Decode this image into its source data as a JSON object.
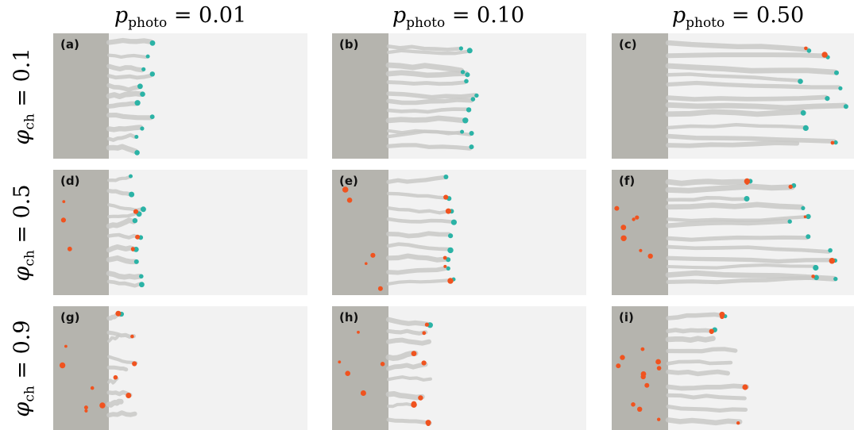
{
  "columns": [
    {
      "label": "p",
      "sub": "photo",
      "value": "= 0.01"
    },
    {
      "label": "p",
      "sub": "photo",
      "value": "= 0.10"
    },
    {
      "label": "p",
      "sub": "photo",
      "value": "= 0.50"
    }
  ],
  "rows": [
    {
      "label": "φ",
      "sub": "ch",
      "value": "= 0.1"
    },
    {
      "label": "φ",
      "sub": "ch",
      "value": "= 0.5"
    },
    {
      "label": "φ",
      "sub": "ch",
      "value": "= 0.9"
    }
  ],
  "panels": [
    {
      "label": "(a)",
      "teal": 11,
      "orange": 0
    },
    {
      "label": "(b)",
      "teal": 12,
      "orange": 0
    },
    {
      "label": "(c)",
      "teal": 10,
      "orange": 3
    },
    {
      "label": "(d)",
      "teal": 10,
      "orange": 7
    },
    {
      "label": "(e)",
      "teal": 9,
      "orange": 10
    },
    {
      "label": "(f)",
      "teal": 12,
      "orange": 16
    },
    {
      "label": "(g)",
      "teal": 1,
      "orange": 12
    },
    {
      "label": "(h)",
      "teal": 1,
      "orange": 14
    },
    {
      "label": "(i)",
      "teal": 2,
      "orange": 18
    }
  ],
  "colors": {
    "background": "#f2f2f2",
    "wall": "#b5b4ae",
    "trail": "#c9c9c7",
    "teal": "#2bb3a6",
    "orange": "#f0531f"
  }
}
